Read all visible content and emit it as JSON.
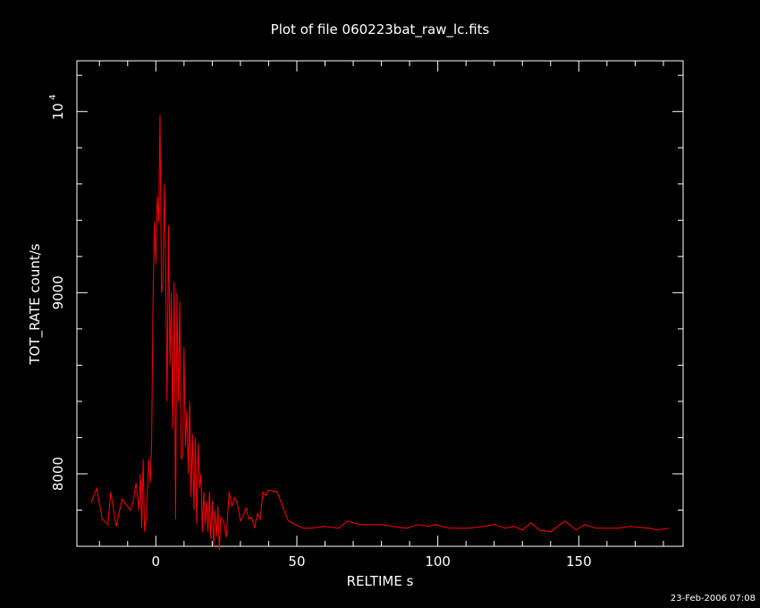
{
  "chart_data": {
    "type": "line",
    "title": "Plot of file 060223bat_raw_lc.fits",
    "xlabel": "RELTIME   s",
    "ylabel": "TOT_RATE   count/s",
    "xlim": [
      -28,
      187
    ],
    "ylim": [
      7600,
      10280
    ],
    "xticks_major": [
      0,
      50,
      100,
      150
    ],
    "xtick_labels": [
      "0",
      "50",
      "100",
      "150"
    ],
    "yticks_major": [
      8000,
      9000,
      10000
    ],
    "ytick_labels": [
      "8000",
      "9000",
      "10"
    ],
    "ytick_exponent": "4",
    "timestamp": "23-Feb-2006 07:08",
    "line_color": "#ff0000",
    "series": [
      {
        "x": [
          -23,
          -21,
          -19,
          -17,
          -16,
          -14,
          -12,
          -10,
          -9,
          -8,
          -7,
          -6,
          -5.5,
          -5,
          -4.5,
          -4,
          -3.5,
          -3,
          -2.5,
          -2,
          -1.5,
          -1,
          -0.5,
          0,
          0.5,
          1,
          1.5,
          2,
          2.5,
          3,
          3.5,
          4,
          4.5,
          5,
          5.5,
          6,
          6.5,
          7,
          7.5,
          8,
          8.5,
          9,
          9.5,
          10,
          10.5,
          11,
          11.5,
          12,
          12.5,
          13,
          13.5,
          14,
          14.5,
          15,
          15.5,
          16,
          16.5,
          17,
          17.5,
          18,
          18.5,
          19,
          19.5,
          20,
          20.5,
          21,
          21.5,
          22,
          22.5,
          23,
          24,
          25,
          26,
          27,
          28,
          29,
          30,
          31,
          32,
          33,
          34,
          35,
          36,
          37,
          38,
          39,
          40,
          43,
          47,
          52,
          55,
          60,
          65,
          68,
          72,
          76,
          80,
          84,
          89,
          93,
          97,
          99,
          104,
          111,
          116,
          120,
          124,
          127,
          130,
          133,
          136,
          140,
          145,
          149,
          152,
          156,
          164,
          168,
          175,
          178,
          182
        ],
        "y": [
          7840,
          7920,
          7750,
          7720,
          7900,
          7710,
          7860,
          7820,
          7800,
          7850,
          7950,
          7800,
          8000,
          7700,
          8080,
          7680,
          7750,
          7900,
          8080,
          7950,
          8170,
          8930,
          9390,
          9160,
          9530,
          9390,
          9980,
          9000,
          9050,
          9600,
          9120,
          8400,
          9370,
          8600,
          9000,
          8250,
          9060,
          7750,
          9000,
          8400,
          8950,
          8080,
          8100,
          8700,
          8150,
          8350,
          8000,
          8400,
          7870,
          8220,
          7800,
          8200,
          7720,
          8170,
          7920,
          8000,
          7680,
          7900,
          7720,
          7850,
          7680,
          7900,
          7640,
          7850,
          7600,
          7800,
          7650,
          7820,
          7580,
          7760,
          7740,
          7650,
          7900,
          7820,
          7870,
          7830,
          7740,
          7770,
          7810,
          7750,
          7760,
          7700,
          7780,
          7750,
          7900,
          7880,
          7910,
          7900,
          7740,
          7700,
          7700,
          7710,
          7700,
          7740,
          7720,
          7720,
          7720,
          7710,
          7700,
          7720,
          7710,
          7720,
          7700,
          7700,
          7710,
          7720,
          7700,
          7710,
          7690,
          7730,
          7690,
          7680,
          7740,
          7690,
          7720,
          7700,
          7700,
          7710,
          7700,
          7690,
          7700
        ]
      }
    ]
  }
}
